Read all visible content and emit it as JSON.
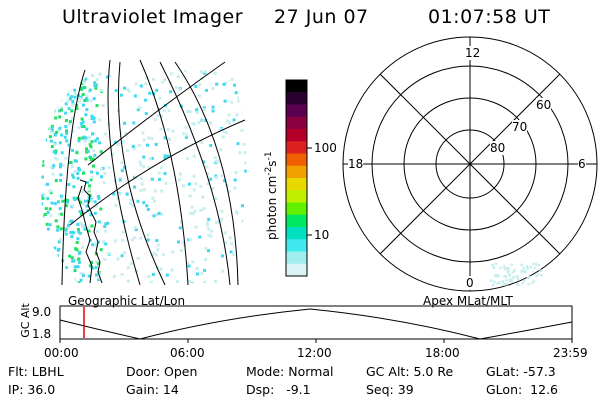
{
  "header": {
    "instrument": "Ultraviolet Imager",
    "date": "27 Jun 07",
    "time": "01:07:58 UT"
  },
  "colorbar": {
    "label": "photon cm",
    "label_sup1": "-2",
    "label_mid": "s",
    "label_sup2": "-1",
    "ticks": [
      "100",
      "10"
    ],
    "colors": [
      "#000000",
      "#2a0030",
      "#5a0050",
      "#8a0040",
      "#b40028",
      "#dc2020",
      "#f06000",
      "#f0a000",
      "#e8d800",
      "#c0f000",
      "#60f000",
      "#00e860",
      "#00e0c0",
      "#40e8f0",
      "#a0eeee",
      "#d8f4f4"
    ]
  },
  "geo_panel": {
    "label": "Geographic Lat/Lon",
    "fill_color": "#c8eef0",
    "dot_color": "#40d8f0",
    "bright_color": "#20e060"
  },
  "polar_panel": {
    "label": "Apex MLat/MLT",
    "mlt_labels": [
      "12",
      "18",
      "6",
      "0"
    ],
    "lat_labels": [
      "60",
      "70",
      "80"
    ]
  },
  "altitude_plot": {
    "ylabel": "GC Alt",
    "yticks": [
      "9.0",
      "1.8"
    ],
    "xticks": [
      "00:00",
      "06:00",
      "12:00",
      "18:00",
      "23:59"
    ],
    "marker_color": "#e00000"
  },
  "info": {
    "flt": "Flt: LBHL",
    "door": "Door: Open",
    "mode": "Mode: Normal",
    "gc_alt": "GC Alt: 5.0 Re",
    "glat": "GLat: -57.3",
    "ip": "IP: 36.0",
    "gain": "Gain: 14",
    "dsp": "Dsp:   -9.1",
    "seq": "Seq: 39",
    "glon": "GLon:  12.6"
  }
}
